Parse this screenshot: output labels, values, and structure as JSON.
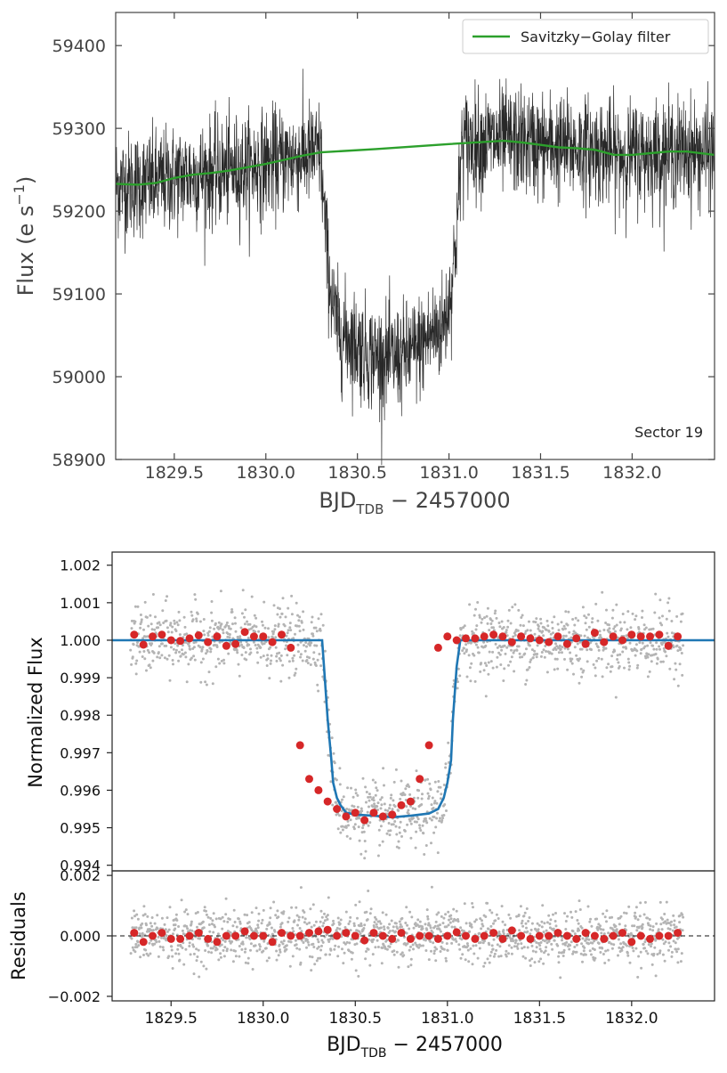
{
  "chart_data": [
    {
      "type": "line",
      "panel": "top",
      "ylabel": "Flux (e s",
      "ylabel_sup": "−1",
      "ylabel_close": ")",
      "xlabel_main": "BJD",
      "xlabel_sub": "TDB",
      "xlabel_rest": " − 2457000",
      "xlim": [
        1829.18,
        1832.45
      ],
      "ylim": [
        58900,
        59440
      ],
      "xticks": [
        1829.5,
        1830.0,
        1830.5,
        1831.0,
        1831.5,
        1832.0
      ],
      "xtick_labels": [
        "1829.5",
        "1830.0",
        "1830.5",
        "1831.0",
        "1831.5",
        "1832.0"
      ],
      "yticks": [
        58900,
        59000,
        59100,
        59200,
        59300,
        59400
      ],
      "ytick_labels": [
        "58900",
        "59000",
        "59100",
        "59200",
        "59300",
        "59400"
      ],
      "annotation": "Sector 19",
      "legend": {
        "location": "upper right",
        "entries": [
          "Savitzky−Golay filter"
        ]
      },
      "series": [
        {
          "name": "Savitzky−Golay filter",
          "color": "#2ca02c",
          "x": [
            1829.18,
            1829.3,
            1829.4,
            1829.5,
            1829.6,
            1829.7,
            1829.8,
            1829.9,
            1830.0,
            1830.1,
            1830.2,
            1830.3,
            1830.6,
            1831.0,
            1831.3,
            1831.4,
            1831.5,
            1831.6,
            1831.7,
            1831.8,
            1831.9,
            1832.0,
            1832.1,
            1832.2,
            1832.3,
            1832.45
          ],
          "y": [
            59233,
            59232,
            59234,
            59240,
            59244,
            59246,
            59249,
            59253,
            59257,
            59262,
            59267,
            59271,
            59275,
            59281,
            59285,
            59283,
            59280,
            59277,
            59276,
            59274,
            59268,
            59268,
            59270,
            59272,
            59272,
            59268
          ]
        },
        {
          "name": "",
          "color": "#000000",
          "style": "raw flux, 2-min cadence",
          "transit": {
            "ingress_start": 1830.3,
            "ingress_end": 1830.45,
            "egress_start": 1830.92,
            "egress_end": 1831.07,
            "depth": 255,
            "scatter": 32
          }
        }
      ]
    },
    {
      "type": "scatter",
      "panel": "middle",
      "ylabel": "Normalized Flux",
      "xlim": [
        1829.18,
        1832.45
      ],
      "ylim": [
        0.99385,
        1.00235
      ],
      "yticks": [
        0.994,
        0.995,
        0.996,
        0.997,
        0.998,
        0.999,
        1.0,
        1.001,
        1.002
      ],
      "ytick_labels": [
        "0.994",
        "0.995",
        "0.996",
        "0.997",
        "0.998",
        "0.999",
        "1.000",
        "1.001",
        "1.002"
      ],
      "series": [
        {
          "name": "",
          "color": "#1f77b4",
          "style": "transit model line",
          "x": [
            1829.18,
            1830.32,
            1830.33,
            1830.35,
            1830.37,
            1830.38,
            1830.4,
            1830.42,
            1830.45,
            1830.5,
            1830.6,
            1830.7,
            1830.8,
            1830.9,
            1830.95,
            1830.98,
            1831.0,
            1831.02,
            1831.03,
            1831.05,
            1831.07,
            1831.08,
            1832.45
          ],
          "y": [
            1.0,
            1.0,
            0.9993,
            0.9979,
            0.9968,
            0.9962,
            0.9958,
            0.9956,
            0.9954,
            0.99535,
            0.99532,
            0.99528,
            0.99532,
            0.99538,
            0.9955,
            0.9958,
            0.9962,
            0.9968,
            0.9979,
            0.9993,
            1.0,
            1.0,
            1.0
          ]
        },
        {
          "name": "",
          "color": "#d62728",
          "style": "binned flux",
          "x": [
            1829.3,
            1829.35,
            1829.4,
            1829.45,
            1829.5,
            1829.55,
            1829.6,
            1829.65,
            1829.7,
            1829.75,
            1829.8,
            1829.85,
            1829.9,
            1829.95,
            1830.0,
            1830.05,
            1830.1,
            1830.15,
            1830.2,
            1830.25,
            1830.3,
            1830.35,
            1830.4,
            1830.45,
            1830.5,
            1830.55,
            1830.6,
            1830.65,
            1830.7,
            1830.75,
            1830.8,
            1830.85,
            1830.9,
            1830.95,
            1831.0,
            1831.05,
            1831.1,
            1831.15,
            1831.2,
            1831.25,
            1831.3,
            1831.35,
            1831.4,
            1831.45,
            1831.5,
            1831.55,
            1831.6,
            1831.65,
            1831.7,
            1831.75,
            1831.8,
            1831.85,
            1831.9,
            1831.95,
            1832.0,
            1832.05,
            1832.1,
            1832.15,
            1832.2,
            1832.25
          ],
          "y": [
            1.00015,
            0.99988,
            1.0001,
            1.00015,
            1.0,
            0.99998,
            1.00005,
            1.00013,
            0.99995,
            1.0001,
            0.99985,
            0.9999,
            1.00022,
            1.0001,
            1.0001,
            0.99995,
            1.00015,
            0.9998,
            0.9972,
            0.9963,
            0.996,
            0.9957,
            0.9955,
            0.9953,
            0.9954,
            0.9952,
            0.9954,
            0.9953,
            0.99535,
            0.9956,
            0.9957,
            0.9963,
            0.9972,
            0.9998,
            1.0001,
            1.0,
            1.00005,
            1.00005,
            1.0001,
            1.00015,
            1.0001,
            0.99995,
            1.0001,
            1.00005,
            1.0,
            0.99995,
            1.0001,
            0.9999,
            1.00005,
            0.9999,
            1.0002,
            0.99995,
            1.0001,
            1.0,
            1.00015,
            1.0001,
            1.0001,
            1.00015,
            0.99985,
            1.0001
          ]
        },
        {
          "name": "",
          "color": "#b4b4b4",
          "style": "unbinned flux, scatter 0.00045"
        }
      ]
    },
    {
      "type": "scatter",
      "panel": "bottom",
      "ylabel": "Residuals",
      "xlabel_main": "BJD",
      "xlabel_sub": "TDB",
      "xlabel_rest": " − 2457000",
      "xlim": [
        1829.18,
        1832.45
      ],
      "ylim": [
        -0.00215,
        0.00215
      ],
      "xticks": [
        1829.5,
        1830.0,
        1830.5,
        1831.0,
        1831.5,
        1832.0
      ],
      "xtick_labels": [
        "1829.5",
        "1830.0",
        "1830.5",
        "1831.0",
        "1831.5",
        "1832.0"
      ],
      "yticks": [
        -0.002,
        0.0,
        0.002
      ],
      "ytick_labels": [
        "−0.002",
        "0.000",
        "0.002"
      ],
      "zero_line": "dashed",
      "series": [
        {
          "name": "",
          "color": "#d62728",
          "style": "binned residuals",
          "x": [
            1829.3,
            1829.35,
            1829.4,
            1829.45,
            1829.5,
            1829.55,
            1829.6,
            1829.65,
            1829.7,
            1829.75,
            1829.8,
            1829.85,
            1829.9,
            1829.95,
            1830.0,
            1830.05,
            1830.1,
            1830.15,
            1830.2,
            1830.25,
            1830.3,
            1830.35,
            1830.4,
            1830.45,
            1830.5,
            1830.55,
            1830.6,
            1830.65,
            1830.7,
            1830.75,
            1830.8,
            1830.85,
            1830.9,
            1830.95,
            1831.0,
            1831.05,
            1831.1,
            1831.15,
            1831.2,
            1831.25,
            1831.3,
            1831.35,
            1831.4,
            1831.45,
            1831.5,
            1831.55,
            1831.6,
            1831.65,
            1831.7,
            1831.75,
            1831.8,
            1831.85,
            1831.9,
            1831.95,
            1832.0,
            1832.05,
            1832.1,
            1832.15,
            1832.2,
            1832.25
          ],
          "y": [
            0.0001,
            -0.0002,
            0.0,
            0.0001,
            -0.0001,
            -0.0001,
            0.0,
            0.0001,
            -0.0001,
            -0.0002,
            0.0,
            0.0,
            0.00015,
            0.0,
            0.0,
            -0.0002,
            0.0001,
            0.0,
            0.0,
            0.0001,
            0.00015,
            0.0002,
            0.0,
            0.0001,
            0.0,
            -0.00015,
            0.0001,
            0.0,
            -0.0001,
            0.0001,
            -0.0001,
            0.0,
            0.0,
            -0.0001,
            0.0,
            0.00012,
            0.0,
            -0.0001,
            0.0,
            0.0001,
            -0.0001,
            0.00018,
            0.0,
            -0.0001,
            0.0,
            0.0,
            0.0001,
            0.0,
            -0.0001,
            0.0001,
            0.0,
            -0.0001,
            0.0,
            0.0001,
            -0.0002,
            0.0,
            -0.0001,
            0.0,
            0.0,
            0.0001
          ]
        },
        {
          "name": "",
          "color": "#b4b4b4",
          "style": "unbinned residuals, scatter 0.00045"
        }
      ]
    }
  ]
}
